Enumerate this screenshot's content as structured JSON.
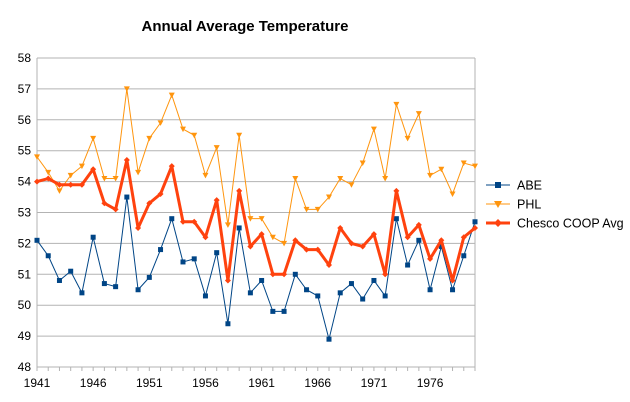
{
  "chart_data": {
    "type": "line",
    "title": "Annual Average Temperature",
    "xlabel": "",
    "ylabel": "",
    "x": [
      1941,
      1942,
      1943,
      1944,
      1945,
      1946,
      1947,
      1948,
      1949,
      1950,
      1951,
      1952,
      1953,
      1954,
      1955,
      1956,
      1957,
      1958,
      1959,
      1960,
      1961,
      1962,
      1963,
      1964,
      1965,
      1966,
      1967,
      1968,
      1969,
      1970,
      1971,
      1972,
      1973,
      1974,
      1975,
      1976,
      1977,
      1978,
      1979,
      1980
    ],
    "xlim": [
      1941,
      1980
    ],
    "x_tick_labels": [
      "1941",
      "1946",
      "1951",
      "1956",
      "1961",
      "1966",
      "1971",
      "1976"
    ],
    "ylim": [
      48,
      58
    ],
    "y_ticks": [
      48,
      49,
      50,
      51,
      52,
      53,
      54,
      55,
      56,
      57,
      58
    ],
    "grid": true,
    "legend_position": "right",
    "series": [
      {
        "name": "ABE",
        "color": "#004586",
        "marker": "square",
        "values": [
          52.1,
          51.6,
          50.8,
          51.1,
          50.4,
          52.2,
          50.7,
          50.6,
          53.5,
          50.5,
          50.9,
          51.8,
          52.8,
          51.4,
          51.5,
          50.3,
          51.7,
          49.4,
          52.5,
          50.4,
          50.8,
          49.8,
          49.8,
          51.0,
          50.5,
          50.3,
          48.9,
          50.4,
          50.7,
          50.2,
          50.8,
          50.3,
          52.8,
          51.3,
          52.1,
          50.5,
          51.9,
          50.5,
          51.6,
          52.7
        ]
      },
      {
        "name": "PHL",
        "color": "#ff950e",
        "marker": "triangle-down",
        "values": [
          54.8,
          54.3,
          53.7,
          54.2,
          54.5,
          55.4,
          54.1,
          54.1,
          57.0,
          54.3,
          55.4,
          55.9,
          56.8,
          55.7,
          55.5,
          54.2,
          55.1,
          52.6,
          55.5,
          52.8,
          52.8,
          52.2,
          52.0,
          54.1,
          53.1,
          53.1,
          53.5,
          54.1,
          53.9,
          54.6,
          55.7,
          54.1,
          56.5,
          55.4,
          56.2,
          54.2,
          54.4,
          53.6,
          54.6,
          54.5
        ]
      },
      {
        "name": "Chesco COOP Avg",
        "color": "#ff420e",
        "marker": "diamond",
        "values": [
          54.0,
          54.1,
          53.9,
          53.9,
          53.9,
          54.4,
          53.3,
          53.1,
          54.7,
          52.5,
          53.3,
          53.6,
          54.5,
          52.7,
          52.7,
          52.2,
          53.4,
          50.8,
          53.7,
          51.9,
          52.3,
          51.0,
          51.0,
          52.1,
          51.8,
          51.8,
          51.3,
          52.5,
          52.0,
          51.9,
          52.3,
          51.0,
          53.7,
          52.2,
          52.6,
          51.5,
          52.1,
          50.8,
          52.2,
          52.5
        ]
      }
    ]
  }
}
